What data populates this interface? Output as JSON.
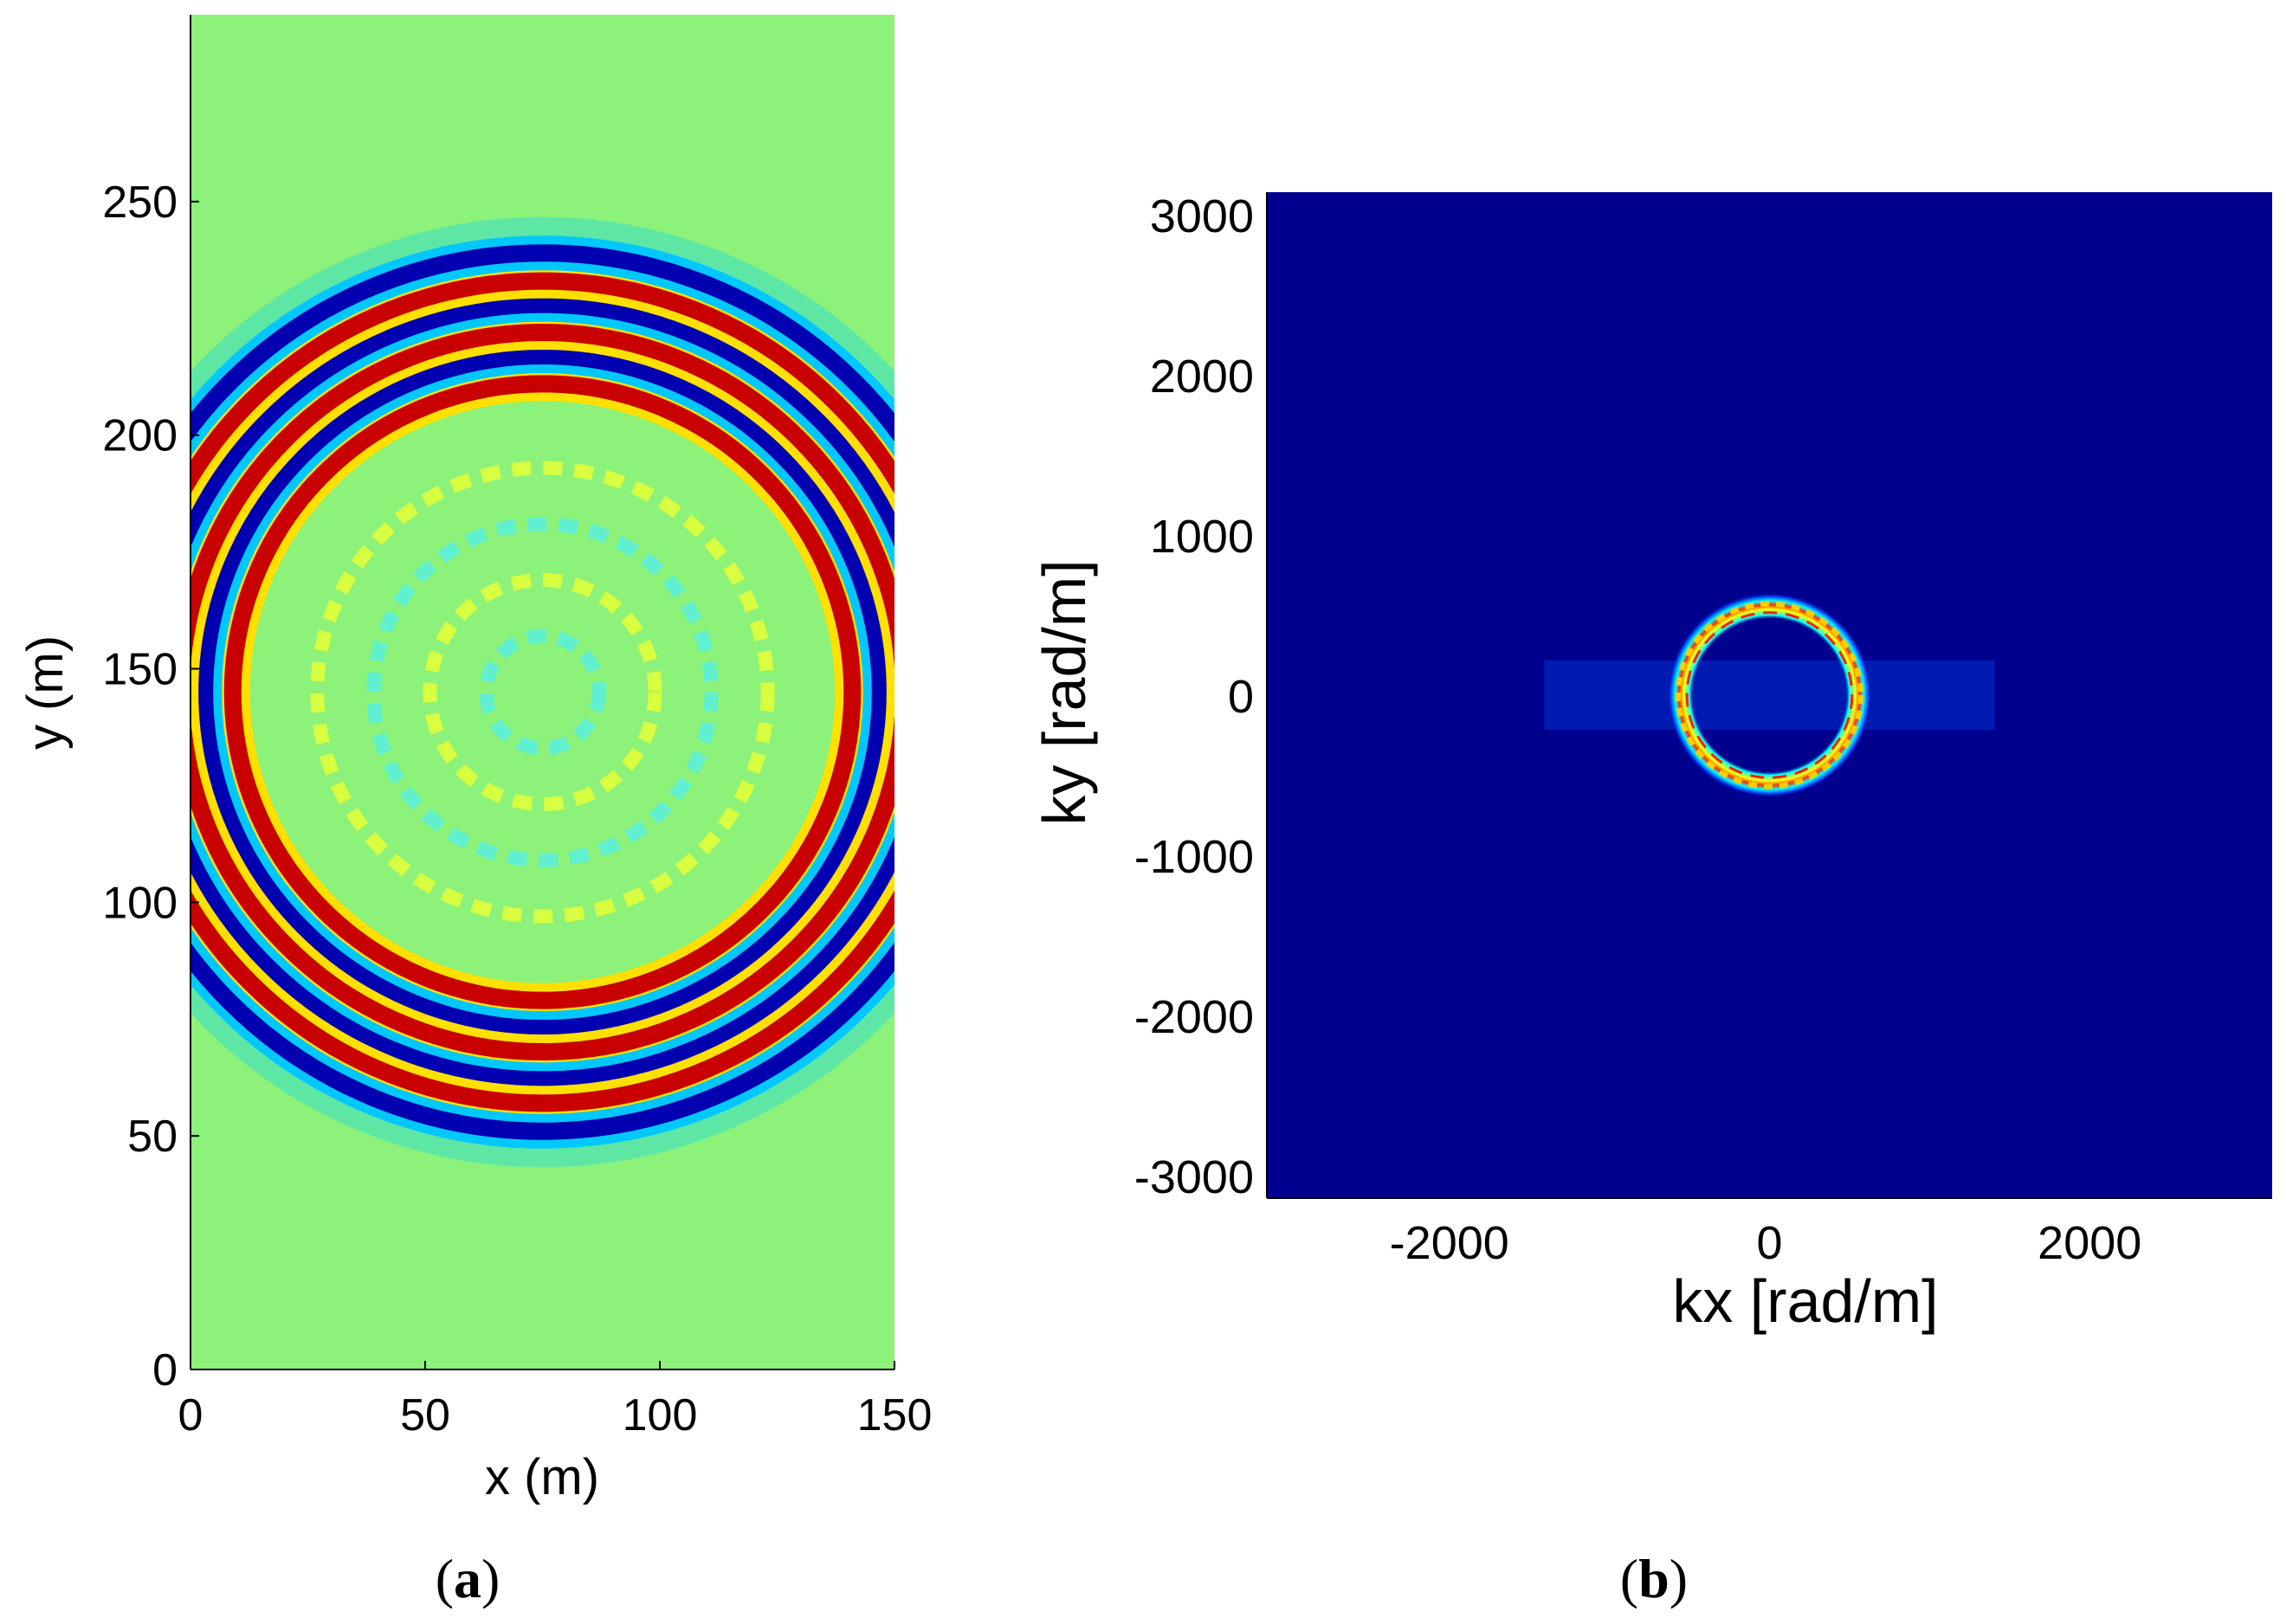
{
  "chart_data": [
    {
      "type": "heatmap",
      "panel_label": "(a)",
      "panel_letter": "a",
      "description_kind": "wavefield snapshot",
      "xlabel": "x (m)",
      "ylabel": "y (m)",
      "xlim": [
        0,
        150
      ],
      "ylim": [
        0,
        290
      ],
      "xticks": [
        0,
        50,
        100,
        150
      ],
      "xtick_labels": [
        "0",
        "50",
        "100",
        "150"
      ],
      "yticks": [
        0,
        50,
        100,
        150,
        200,
        250
      ],
      "ytick_labels": [
        "0",
        "50",
        "100",
        "150",
        "200",
        "250"
      ],
      "source_center": [
        75,
        145
      ],
      "wavefront_radii": [
        66,
        72,
        77,
        83,
        88,
        94
      ],
      "wavefront_polarity": [
        1,
        -1,
        1,
        -1,
        1,
        -1
      ],
      "colormap": [
        "#00008f",
        "#0000ff",
        "#00ffff",
        "#80ff80",
        "#ffff00",
        "#ff0000",
        "#800000"
      ],
      "background_color": "#8cf27a"
    },
    {
      "type": "heatmap",
      "panel_label": "(b)",
      "panel_letter": "b",
      "description_kind": "wavenumber spectrum",
      "xlabel": "kx [rad/m]",
      "ylabel": "ky [rad/m]",
      "xlim": [
        -3140,
        3140
      ],
      "ylim": [
        -3140,
        3140
      ],
      "xticks": [
        -2000,
        0,
        2000
      ],
      "xtick_labels": [
        "-2000",
        "0",
        "2000"
      ],
      "yticks": [
        -3000,
        -2000,
        -1000,
        0,
        1000,
        2000,
        3000
      ],
      "ytick_labels": [
        "-3000",
        "-2000",
        "-1000",
        "0",
        "1000",
        "2000",
        "3000"
      ],
      "ring_center": [
        0,
        0
      ],
      "ring_radius_inner": 500,
      "ring_radius_outer": 640,
      "colormap": [
        "#00008f",
        "#0000ff",
        "#00ffff",
        "#ffff00",
        "#ff0000"
      ],
      "background_color": "#00008f"
    }
  ]
}
